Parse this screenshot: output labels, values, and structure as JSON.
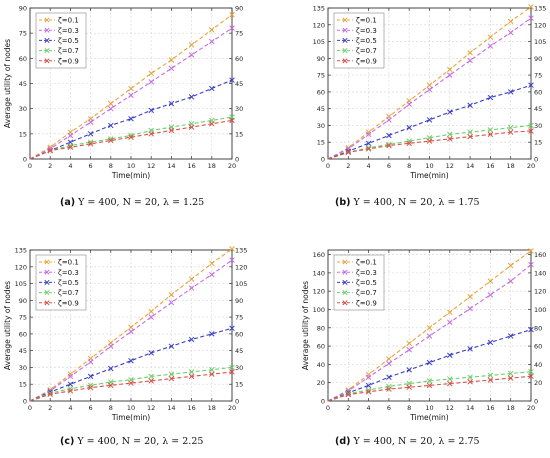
{
  "chart_data": [
    {
      "type": "line",
      "xlabel": "Time(min)",
      "ylabel": "Average utility of nodes",
      "ylim": [
        0,
        90
      ],
      "yticks": [
        0,
        15,
        30,
        45,
        60,
        75,
        90
      ],
      "xlim": [
        0,
        20
      ],
      "xticks": [
        0,
        2,
        4,
        6,
        8,
        10,
        12,
        14,
        16,
        18,
        20
      ],
      "grid": true,
      "legend": "top-left",
      "x": [
        2,
        4,
        6,
        8,
        10,
        12,
        14,
        16,
        18,
        20
      ],
      "series": [
        {
          "name": "ζ=0.1",
          "color": "#e8a33a",
          "values": [
            7,
            16,
            24,
            33,
            42,
            51,
            59,
            68,
            77,
            86
          ]
        },
        {
          "name": "ζ=0.3",
          "color": "#c66ee0",
          "values": [
            6,
            14,
            22,
            30,
            38,
            46,
            54,
            62,
            70,
            78
          ]
        },
        {
          "name": "ζ=0.5",
          "color": "#3b3fc4",
          "values": [
            5,
            10,
            15,
            20,
            24,
            29,
            33,
            37,
            42,
            47
          ]
        },
        {
          "name": "ζ=0.7",
          "color": "#6fcf6a",
          "values": [
            5,
            8,
            10,
            12,
            14,
            17,
            19,
            21,
            23,
            25
          ]
        },
        {
          "name": "ζ=0.9",
          "color": "#d8524a",
          "values": [
            5,
            7,
            9,
            11,
            13,
            15,
            17,
            19,
            21,
            23
          ]
        }
      ]
    },
    {
      "type": "line",
      "xlabel": "Time(min)",
      "ylabel": "",
      "ylim": [
        0,
        135
      ],
      "yticks": [
        0,
        15,
        30,
        45,
        60,
        75,
        90,
        105,
        120,
        135
      ],
      "xlim": [
        0,
        20
      ],
      "xticks": [
        0,
        2,
        4,
        6,
        8,
        10,
        12,
        14,
        16,
        18,
        20
      ],
      "grid": true,
      "legend": "top-left",
      "x": [
        2,
        4,
        6,
        8,
        10,
        12,
        14,
        16,
        18,
        20
      ],
      "series": [
        {
          "name": "ζ=0.1",
          "color": "#e8a33a",
          "values": [
            10,
            24,
            38,
            52,
            66,
            80,
            95,
            109,
            123,
            136
          ]
        },
        {
          "name": "ζ=0.3",
          "color": "#c66ee0",
          "values": [
            9,
            22,
            35,
            49,
            62,
            75,
            88,
            101,
            113,
            126
          ]
        },
        {
          "name": "ζ=0.5",
          "color": "#3b3fc4",
          "values": [
            7,
            14,
            21,
            28,
            35,
            42,
            48,
            55,
            60,
            66
          ]
        },
        {
          "name": "ζ=0.7",
          "color": "#6fcf6a",
          "values": [
            6,
            10,
            13,
            16,
            19,
            22,
            24,
            26,
            28,
            30
          ]
        },
        {
          "name": "ζ=0.9",
          "color": "#d8524a",
          "values": [
            6,
            9,
            12,
            14,
            16,
            18,
            20,
            22,
            24,
            25
          ]
        }
      ]
    },
    {
      "type": "line",
      "xlabel": "Time(min)",
      "ylabel": "Average utility of nodes",
      "ylim": [
        0,
        135
      ],
      "yticks": [
        0,
        15,
        30,
        45,
        60,
        75,
        90,
        105,
        120,
        135
      ],
      "xlim": [
        0,
        20
      ],
      "xticks": [
        0,
        2,
        4,
        6,
        8,
        10,
        12,
        14,
        16,
        18,
        20
      ],
      "grid": true,
      "legend": "top-left",
      "x": [
        2,
        4,
        6,
        8,
        10,
        12,
        14,
        16,
        18,
        20
      ],
      "series": [
        {
          "name": "ζ=0.1",
          "color": "#e8a33a",
          "values": [
            10,
            24,
            38,
            52,
            66,
            80,
            95,
            109,
            123,
            136
          ]
        },
        {
          "name": "ζ=0.3",
          "color": "#c66ee0",
          "values": [
            9,
            22,
            35,
            49,
            62,
            75,
            88,
            101,
            113,
            126
          ]
        },
        {
          "name": "ζ=0.5",
          "color": "#3b3fc4",
          "values": [
            8,
            15,
            22,
            29,
            36,
            43,
            49,
            55,
            60,
            65
          ]
        },
        {
          "name": "ζ=0.7",
          "color": "#6fcf6a",
          "values": [
            7,
            11,
            14,
            17,
            19,
            22,
            24,
            26,
            28,
            30
          ]
        },
        {
          "name": "ζ=0.9",
          "color": "#d8524a",
          "values": [
            6,
            9,
            12,
            14,
            16,
            18,
            20,
            22,
            24,
            26
          ]
        }
      ]
    },
    {
      "type": "line",
      "xlabel": "Time(min)",
      "ylabel": "Average utility of nodes",
      "ylim": [
        0,
        165
      ],
      "yticks": [
        0,
        20,
        40,
        60,
        80,
        100,
        120,
        140,
        160
      ],
      "xlim": [
        0,
        20
      ],
      "xticks": [
        0,
        2,
        4,
        6,
        8,
        10,
        12,
        14,
        16,
        18,
        20
      ],
      "grid": true,
      "legend": "top-left",
      "x": [
        2,
        4,
        6,
        8,
        10,
        12,
        14,
        16,
        18,
        20
      ],
      "series": [
        {
          "name": "ζ=0.1",
          "color": "#e8a33a",
          "values": [
            12,
            29,
            46,
            63,
            80,
            97,
            114,
            131,
            148,
            164
          ]
        },
        {
          "name": "ζ=0.3",
          "color": "#c66ee0",
          "values": [
            11,
            26,
            41,
            56,
            71,
            86,
            101,
            116,
            131,
            149
          ]
        },
        {
          "name": "ζ=0.5",
          "color": "#3b3fc4",
          "values": [
            9,
            17,
            26,
            34,
            42,
            50,
            57,
            64,
            71,
            78
          ]
        },
        {
          "name": "ζ=0.7",
          "color": "#6fcf6a",
          "values": [
            8,
            12,
            16,
            19,
            22,
            24,
            26,
            28,
            30,
            32
          ]
        },
        {
          "name": "ζ=0.9",
          "color": "#d8524a",
          "values": [
            7,
            10,
            13,
            15,
            17,
            19,
            21,
            23,
            25,
            27
          ]
        }
      ]
    }
  ],
  "captions": [
    {
      "tag": "(a)",
      "text": "Y = 400, N = 20, λ = 1.25"
    },
    {
      "tag": "(b)",
      "text": "Y = 400, N = 20, λ = 1.75"
    },
    {
      "tag": "(c)",
      "text": "Y = 400, N = 20, λ = 2.25"
    },
    {
      "tag": "(d)",
      "text": "Y = 400, N = 20, λ = 2.75"
    }
  ]
}
